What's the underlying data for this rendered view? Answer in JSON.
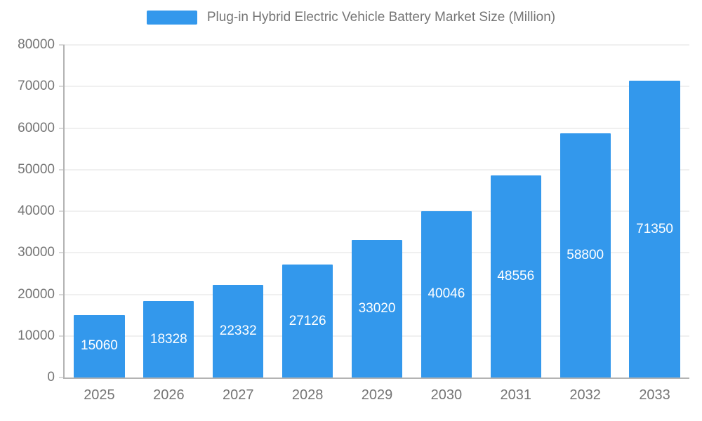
{
  "chart_data": {
    "type": "bar",
    "title": "Plug-in Hybrid Electric Vehicle Battery Market Size (Million)",
    "categories": [
      "2025",
      "2026",
      "2027",
      "2028",
      "2029",
      "2030",
      "2031",
      "2032",
      "2033"
    ],
    "values": [
      15060,
      18328,
      22332,
      27126,
      33020,
      40046,
      48556,
      58800,
      71350
    ],
    "xlabel": "",
    "ylabel": "",
    "ylim": [
      0,
      80000
    ],
    "ytick_step": 10000,
    "grid": true,
    "legend_position": "top",
    "colors": {
      "bar": "#3398EC",
      "bar_value_text": "#ffffff",
      "axis_line": "#b3b3b3",
      "gridline": "#e0e0e0",
      "tick_text": "#757575"
    }
  }
}
